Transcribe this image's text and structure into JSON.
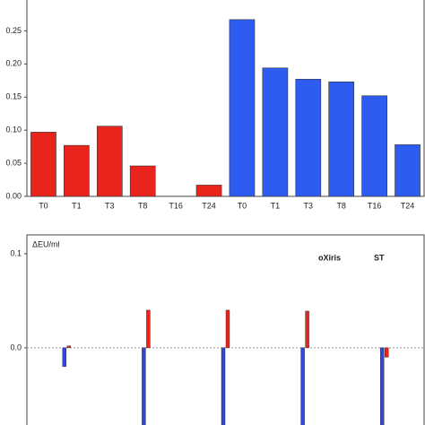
{
  "chart_data": [
    {
      "type": "bar",
      "categories": [
        "T0",
        "T1",
        "T3",
        "T8",
        "T16",
        "T24",
        "T0",
        "T1",
        "T3",
        "T8",
        "T16",
        "T24"
      ],
      "values": [
        0.097,
        0.077,
        0.106,
        0.046,
        0,
        0.017,
        0.267,
        0.194,
        0.177,
        0.173,
        0.152,
        0.078
      ],
      "colors": [
        "#e8241c",
        "#e8241c",
        "#e8241c",
        "#e8241c",
        "#e8241c",
        "#e8241c",
        "#2f5cf0",
        "#2f5cf0",
        "#2f5cf0",
        "#2f5cf0",
        "#2f5cf0",
        "#2f5cf0"
      ],
      "ylim": [
        0,
        0.298
      ],
      "yticks": [
        {
          "value": 0,
          "label": "0.00"
        },
        {
          "value": 0.05,
          "label": "0.05"
        },
        {
          "value": 0.1,
          "label": "0.10"
        },
        {
          "value": 0.15,
          "label": "0.15"
        },
        {
          "value": 0.2,
          "label": "0.20"
        },
        {
          "value": 0.25,
          "label": "0.25"
        }
      ]
    },
    {
      "type": "bar",
      "y_label": "ΔEU/ml",
      "categories": [
        null,
        null,
        null,
        null,
        null
      ],
      "series": [
        {
          "name": "oXiris",
          "color": "#3346d6",
          "values": [
            -0.02,
            -0.09,
            -0.09,
            -0.09,
            -0.09
          ]
        },
        {
          "name": "ST",
          "color": "#e8241c",
          "values": [
            0.002,
            0.04,
            0.04,
            0.039,
            -0.01
          ]
        }
      ],
      "ylim": [
        -0.084,
        0.12
      ],
      "yticks": [
        {
          "value": 0,
          "label": "0.0"
        },
        0.1
      ]
    }
  ]
}
